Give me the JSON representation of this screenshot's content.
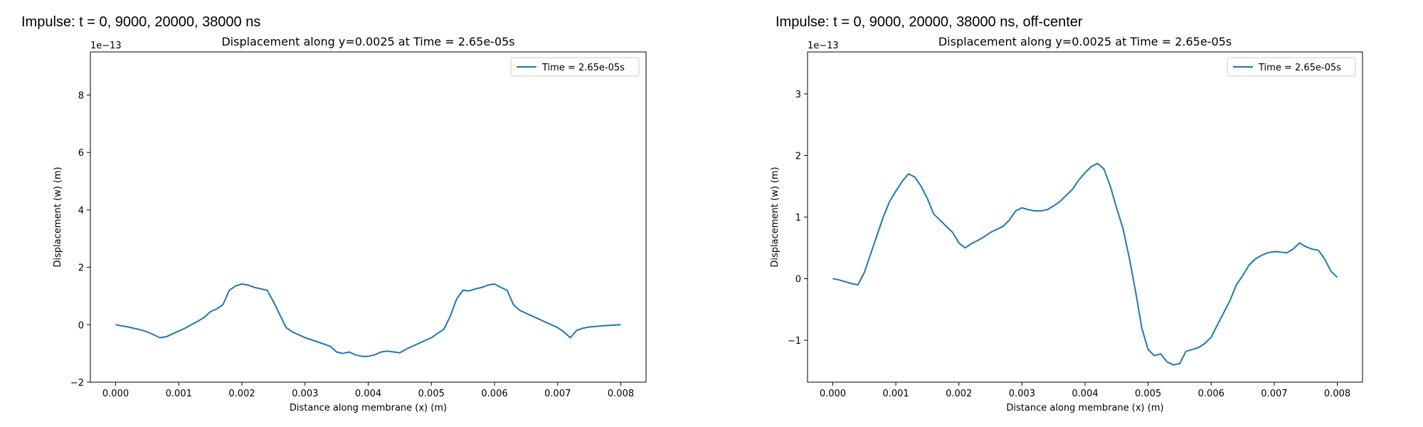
{
  "figures": [
    {
      "suptitle": "Impulse: t = 0, 9000, 20000, 38000 ns"
    },
    {
      "suptitle": "Impulse: t = 0, 9000, 20000, 38000 ns, off-center"
    }
  ],
  "chart_data": [
    {
      "type": "line",
      "title": "Displacement along y=0.0025 at Time = 2.65e-05s",
      "xlabel": "Distance along membrane (x) (m)",
      "ylabel": "Displacement (w) (m)",
      "y_offset_label": "1e−13",
      "xlim": [
        -0.0004,
        0.0084
      ],
      "ylim": [
        -2.0,
        9.5
      ],
      "xticks": [
        0.0,
        0.001,
        0.002,
        0.003,
        0.004,
        0.005,
        0.006,
        0.007,
        0.008
      ],
      "xtick_labels": [
        "0.000",
        "0.001",
        "0.002",
        "0.003",
        "0.004",
        "0.005",
        "0.006",
        "0.007",
        "0.008"
      ],
      "yticks": [
        -2,
        0,
        2,
        4,
        6,
        8
      ],
      "ytick_labels": [
        "−2",
        "0",
        "2",
        "4",
        "6",
        "8"
      ],
      "legend_position": "top-right",
      "line_color": "#1f77b4",
      "series": [
        {
          "name": "Time = 2.65e-05s",
          "x": [
            0.0,
            0.0002,
            0.0004,
            0.0005,
            0.0006,
            0.0007,
            0.0008,
            0.0009,
            0.001,
            0.0011,
            0.0012,
            0.0013,
            0.0014,
            0.0015,
            0.0016,
            0.0017,
            0.0018,
            0.0019,
            0.002,
            0.0021,
            0.0022,
            0.0023,
            0.0024,
            0.0025,
            0.0026,
            0.0027,
            0.0028,
            0.003,
            0.0032,
            0.0034,
            0.0035,
            0.0036,
            0.0037,
            0.0038,
            0.0039,
            0.004,
            0.0041,
            0.0042,
            0.0043,
            0.0045,
            0.0046,
            0.0048,
            0.005,
            0.0051,
            0.0052,
            0.0053,
            0.0054,
            0.0055,
            0.0056,
            0.0057,
            0.0058,
            0.0059,
            0.006,
            0.0061,
            0.0062,
            0.0063,
            0.0064,
            0.0065,
            0.0066,
            0.0067,
            0.0068,
            0.0069,
            0.007,
            0.0071,
            0.0072,
            0.0073,
            0.0074,
            0.0075,
            0.0077,
            0.008
          ],
          "y": [
            0.0,
            -0.08,
            -0.18,
            -0.25,
            -0.35,
            -0.45,
            -0.42,
            -0.32,
            -0.22,
            -0.12,
            0.0,
            0.12,
            0.25,
            0.45,
            0.55,
            0.7,
            1.2,
            1.35,
            1.42,
            1.38,
            1.3,
            1.25,
            1.2,
            0.8,
            0.35,
            -0.1,
            -0.25,
            -0.45,
            -0.6,
            -0.75,
            -0.95,
            -1.0,
            -0.95,
            -1.05,
            -1.1,
            -1.1,
            -1.05,
            -0.95,
            -0.92,
            -0.98,
            -0.85,
            -0.65,
            -0.45,
            -0.3,
            -0.15,
            0.3,
            0.9,
            1.2,
            1.18,
            1.25,
            1.3,
            1.38,
            1.42,
            1.3,
            1.2,
            0.7,
            0.5,
            0.4,
            0.3,
            0.2,
            0.1,
            0.0,
            -0.1,
            -0.25,
            -0.45,
            -0.2,
            -0.12,
            -0.08,
            -0.04,
            0.0
          ]
        }
      ]
    },
    {
      "type": "line",
      "title": "Displacement along y=0.0025 at Time = 2.65e-05s",
      "xlabel": "Distance along membrane (x) (m)",
      "ylabel": "Displacement (w) (m)",
      "y_offset_label": "1e−13",
      "xlim": [
        -0.0004,
        0.0084
      ],
      "ylim": [
        -1.68,
        3.68
      ],
      "xticks": [
        0.0,
        0.001,
        0.002,
        0.003,
        0.004,
        0.005,
        0.006,
        0.007,
        0.008
      ],
      "xtick_labels": [
        "0.000",
        "0.001",
        "0.002",
        "0.003",
        "0.004",
        "0.005",
        "0.006",
        "0.007",
        "0.008"
      ],
      "yticks": [
        -1,
        0,
        1,
        2,
        3
      ],
      "ytick_labels": [
        "−1",
        "0",
        "1",
        "2",
        "3"
      ],
      "legend_position": "top-right",
      "line_color": "#1f77b4",
      "series": [
        {
          "name": "Time = 2.65e-05s",
          "x": [
            0.0,
            0.0001,
            0.0002,
            0.0003,
            0.0004,
            0.0005,
            0.0006,
            0.0007,
            0.0008,
            0.0009,
            0.001,
            0.0011,
            0.0012,
            0.0013,
            0.0014,
            0.0015,
            0.0016,
            0.0017,
            0.0018,
            0.0019,
            0.002,
            0.0021,
            0.0022,
            0.0023,
            0.0024,
            0.0025,
            0.0026,
            0.0027,
            0.0028,
            0.0029,
            0.003,
            0.0031,
            0.0032,
            0.0033,
            0.0034,
            0.0035,
            0.0036,
            0.0037,
            0.0038,
            0.0039,
            0.004,
            0.0041,
            0.0042,
            0.0043,
            0.0044,
            0.0045,
            0.0046,
            0.0047,
            0.0048,
            0.0049,
            0.005,
            0.0051,
            0.0052,
            0.0053,
            0.0054,
            0.0055,
            0.0056,
            0.0057,
            0.0058,
            0.0059,
            0.006,
            0.0061,
            0.0062,
            0.0063,
            0.0064,
            0.0065,
            0.0066,
            0.0067,
            0.0068,
            0.0069,
            0.007,
            0.0071,
            0.0072,
            0.0073,
            0.0074,
            0.0075,
            0.0076,
            0.0077,
            0.0078,
            0.0079,
            0.008
          ],
          "y": [
            0.0,
            -0.02,
            -0.05,
            -0.08,
            -0.1,
            0.1,
            0.4,
            0.7,
            1.0,
            1.25,
            1.42,
            1.58,
            1.7,
            1.65,
            1.5,
            1.3,
            1.05,
            0.95,
            0.85,
            0.75,
            0.58,
            0.5,
            0.57,
            0.62,
            0.68,
            0.75,
            0.8,
            0.85,
            0.95,
            1.1,
            1.15,
            1.12,
            1.1,
            1.1,
            1.12,
            1.18,
            1.25,
            1.35,
            1.45,
            1.6,
            1.72,
            1.82,
            1.87,
            1.78,
            1.5,
            1.15,
            0.82,
            0.35,
            -0.2,
            -0.8,
            -1.15,
            -1.25,
            -1.22,
            -1.35,
            -1.4,
            -1.38,
            -1.18,
            -1.15,
            -1.12,
            -1.05,
            -0.95,
            -0.75,
            -0.55,
            -0.35,
            -0.1,
            0.05,
            0.22,
            0.32,
            0.38,
            0.42,
            0.44,
            0.43,
            0.42,
            0.48,
            0.58,
            0.52,
            0.48,
            0.46,
            0.32,
            0.12,
            0.02
          ]
        }
      ]
    }
  ]
}
